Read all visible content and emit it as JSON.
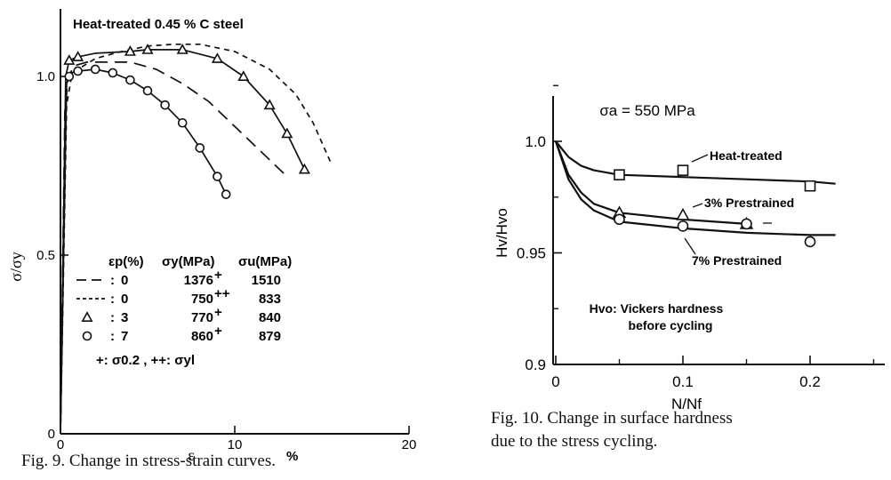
{
  "chart_data": [
    {
      "type": "line",
      "title": "Heat-treated 0.45 % C steel",
      "xlabel": "ε",
      "xunit": "%",
      "ylabel": "σ/σy",
      "xlim": [
        0,
        20
      ],
      "ylim": [
        0,
        1.1
      ],
      "xticks": [
        0,
        10,
        20
      ],
      "xticklabels": [
        "0",
        "10",
        "20"
      ],
      "yticks": [
        0,
        0.5,
        1.0
      ],
      "yticklabels": [
        "0",
        "0.5",
        "1.0"
      ],
      "legend": {
        "headers": [
          "εp(%)",
          "σy(MPa)",
          "σu(MPa)"
        ],
        "rows": [
          {
            "marker": "— —",
            "sep": ":",
            "ep": "0",
            "sy": "1376+",
            "su": "1510"
          },
          {
            "marker": "-----",
            "sep": ":",
            "ep": "0",
            "sy": "750++",
            "su": "833"
          },
          {
            "marker": "△",
            "sep": ":",
            "ep": "3",
            "sy": "770+",
            "su": "840"
          },
          {
            "marker": "○",
            "sep": ":",
            "ep": "7",
            "sy": "860+",
            "su": "879"
          }
        ],
        "footnote": "+: σ0.2 , ++: σyl"
      },
      "series": [
        {
          "name": "εp=0, σy=1376",
          "style": "long-dash",
          "x": [
            0,
            0.25,
            0.45,
            0.8,
            1.5,
            2.5,
            4,
            5.5,
            7,
            8.5,
            10,
            11.5,
            13
          ],
          "y": [
            0,
            0.9,
            1.0,
            1.03,
            1.04,
            1.04,
            1.04,
            1.02,
            0.98,
            0.93,
            0.86,
            0.79,
            0.72
          ]
        },
        {
          "name": "εp=0, σy=750",
          "style": "short-dash",
          "x": [
            0,
            0.35,
            0.6,
            1.0,
            2,
            3.5,
            5,
            6.5,
            8,
            10,
            12,
            13.5,
            14.5,
            15.5
          ],
          "y": [
            0,
            0.92,
            0.99,
            1.02,
            1.05,
            1.07,
            1.085,
            1.09,
            1.09,
            1.07,
            1.02,
            0.95,
            0.87,
            0.76
          ]
        },
        {
          "name": "εp=3",
          "style": "solid",
          "marker": "triangle",
          "x": [
            0,
            0.3,
            0.5,
            1.0,
            2,
            4,
            5,
            7,
            9,
            10.5,
            12,
            13,
            14
          ],
          "y": [
            0,
            1.0,
            1.045,
            1.055,
            1.065,
            1.07,
            1.075,
            1.075,
            1.05,
            1.0,
            0.92,
            0.84,
            0.74
          ],
          "marker_x": [
            0.5,
            1.0,
            4,
            5,
            7,
            9,
            10.5,
            12,
            13,
            14
          ],
          "marker_y": [
            1.045,
            1.055,
            1.07,
            1.075,
            1.075,
            1.05,
            1.0,
            0.92,
            0.84,
            0.74
          ]
        },
        {
          "name": "εp=7",
          "style": "solid",
          "marker": "circle",
          "x": [
            0,
            0.35,
            0.6,
            1.0,
            2,
            3,
            4,
            5,
            6,
            7,
            8,
            9,
            9.5
          ],
          "y": [
            0,
            0.98,
            1.01,
            1.015,
            1.02,
            1.01,
            0.99,
            0.96,
            0.92,
            0.87,
            0.8,
            0.72,
            0.67
          ],
          "marker_x": [
            0.5,
            1.0,
            2,
            3,
            4,
            5,
            6,
            7,
            8,
            9,
            9.5
          ],
          "marker_y": [
            1.0,
            1.015,
            1.02,
            1.01,
            0.99,
            0.96,
            0.92,
            0.87,
            0.8,
            0.72,
            0.67
          ]
        }
      ]
    },
    {
      "type": "line",
      "title": "σa = 550 MPa",
      "xlabel": "N/Nf",
      "ylabel": "Hv/Hvo",
      "xlim": [
        0,
        0.25
      ],
      "ylim": [
        0.9,
        1.025
      ],
      "xticks": [
        0,
        0.1,
        0.2
      ],
      "xticklabels": [
        "0",
        "0.1",
        "0.2"
      ],
      "yticks": [
        0.9,
        0.95,
        1.0
      ],
      "yticklabels": [
        "0.9",
        "0.95",
        "1.0"
      ],
      "annotation": [
        "Hvo: Vickers hardness",
        "before cycling"
      ],
      "series": [
        {
          "name": "Heat-treated",
          "marker": "square",
          "x": [
            0,
            0.01,
            0.02,
            0.03,
            0.05,
            0.1,
            0.15,
            0.2,
            0.22
          ],
          "y": [
            1.0,
            0.993,
            0.989,
            0.987,
            0.985,
            0.984,
            0.983,
            0.982,
            0.981
          ],
          "marker_x": [
            0.05,
            0.1,
            0.2
          ],
          "marker_y": [
            0.985,
            0.987,
            0.98
          ]
        },
        {
          "name": "3% Prestrained",
          "marker": "triangle",
          "x": [
            0,
            0.01,
            0.02,
            0.03,
            0.05,
            0.1,
            0.15
          ],
          "y": [
            1.0,
            0.985,
            0.977,
            0.972,
            0.968,
            0.965,
            0.963
          ],
          "marker_x": [
            0.05,
            0.1,
            0.15
          ],
          "marker_y": [
            0.968,
            0.967,
            0.963
          ]
        },
        {
          "name": "7% Prestrained",
          "marker": "circle",
          "x": [
            0,
            0.01,
            0.02,
            0.03,
            0.05,
            0.1,
            0.15,
            0.2,
            0.22
          ],
          "y": [
            1.0,
            0.983,
            0.974,
            0.969,
            0.964,
            0.961,
            0.959,
            0.958,
            0.958
          ],
          "marker_x": [
            0.05,
            0.1,
            0.15,
            0.2
          ],
          "marker_y": [
            0.965,
            0.962,
            0.963,
            0.955
          ]
        }
      ]
    }
  ],
  "captions": {
    "fig9": "Fig. 9. Change in stress-strain curves.",
    "fig10_line1": "Fig. 10. Change in surface hardness",
    "fig10_line2": "due to the stress cycling."
  }
}
